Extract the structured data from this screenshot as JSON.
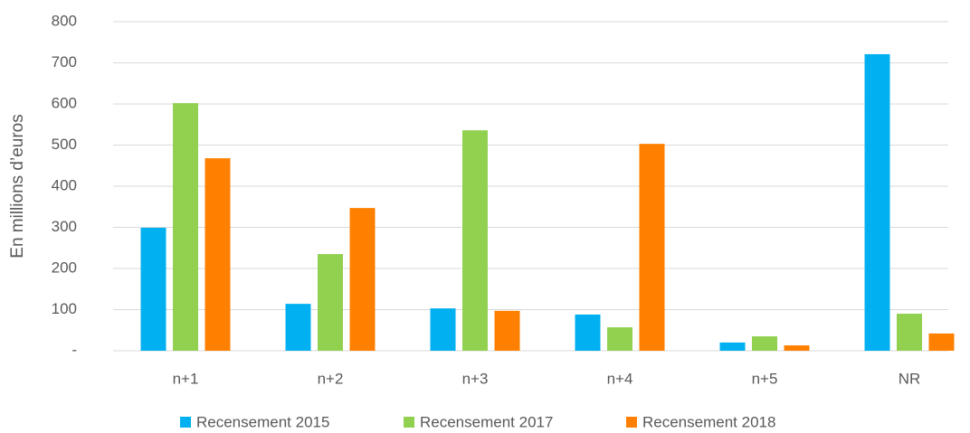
{
  "chart_data": {
    "type": "bar",
    "y_label": "En millions d’euros",
    "categories": [
      "n+1",
      "n+2",
      "n+3",
      "n+4",
      "n+5",
      "NR"
    ],
    "series": [
      {
        "name": "Recensement 2015",
        "color": "#00b0f0",
        "values": [
          299,
          114,
          103,
          88,
          20,
          721
        ]
      },
      {
        "name": "Recensement 2017",
        "color": "#92d050",
        "values": [
          602,
          235,
          536,
          57,
          35,
          90
        ]
      },
      {
        "name": "Recensement 2018",
        "color": "#ff8000",
        "values": [
          468,
          347,
          97,
          503,
          13,
          42
        ]
      }
    ],
    "ylim": [
      0,
      800
    ],
    "yticks": [
      {
        "value": 0,
        "label": "-"
      },
      100,
      200,
      300,
      400,
      500,
      600,
      700,
      800
    ],
    "grid": true,
    "legend": "bottom"
  }
}
